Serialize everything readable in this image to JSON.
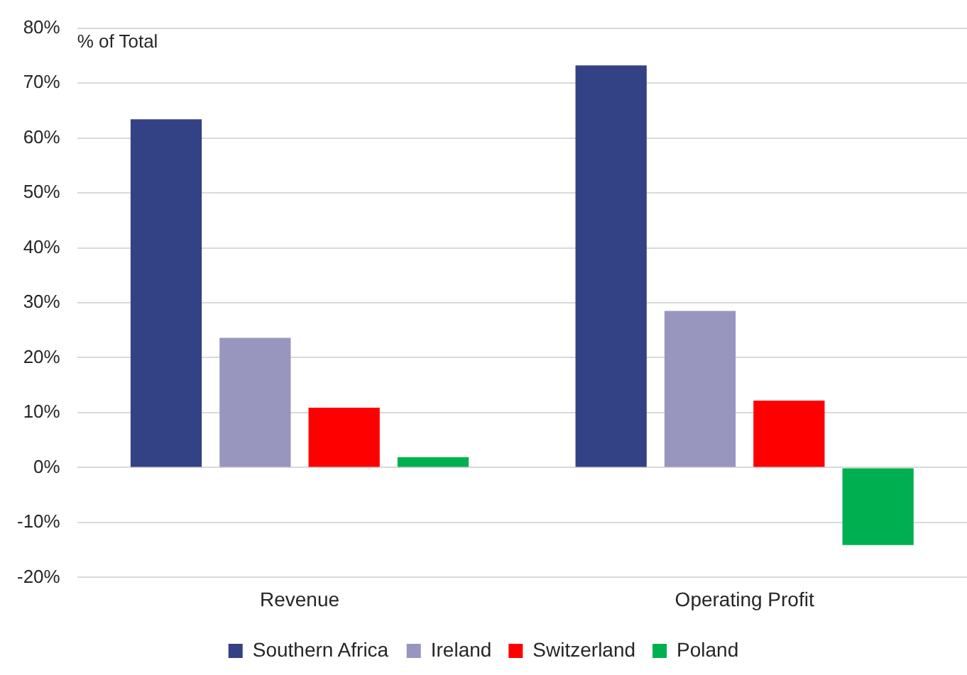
{
  "chart_data": {
    "type": "bar",
    "ylabel": "% of Total",
    "categories": [
      "Revenue",
      "Operating Profit"
    ],
    "series": [
      {
        "name": "Southern Africa",
        "color": "#334185",
        "values": [
          63.4,
          73.2
        ]
      },
      {
        "name": "Ireland",
        "color": "#9896bf",
        "values": [
          23.6,
          28.5
        ]
      },
      {
        "name": "Switzerland",
        "color": "#ff0000",
        "values": [
          10.9,
          12.2
        ]
      },
      {
        "name": "Poland",
        "color": "#00b050",
        "values": [
          1.9,
          -14.1
        ]
      }
    ],
    "ylim": [
      -20,
      80
    ],
    "yticks": [
      {
        "value": -20,
        "label": "-20%"
      },
      {
        "value": -10,
        "label": "-10%"
      },
      {
        "value": 0,
        "label": "0%"
      },
      {
        "value": 10,
        "label": "10%"
      },
      {
        "value": 20,
        "label": "20%"
      },
      {
        "value": 30,
        "label": "30%"
      },
      {
        "value": 40,
        "label": "40%"
      },
      {
        "value": 50,
        "label": "50%"
      },
      {
        "value": 60,
        "label": "60%"
      },
      {
        "value": 70,
        "label": "70%"
      },
      {
        "value": 80,
        "label": "80%"
      }
    ],
    "grid": "y",
    "legend": "bottom"
  }
}
